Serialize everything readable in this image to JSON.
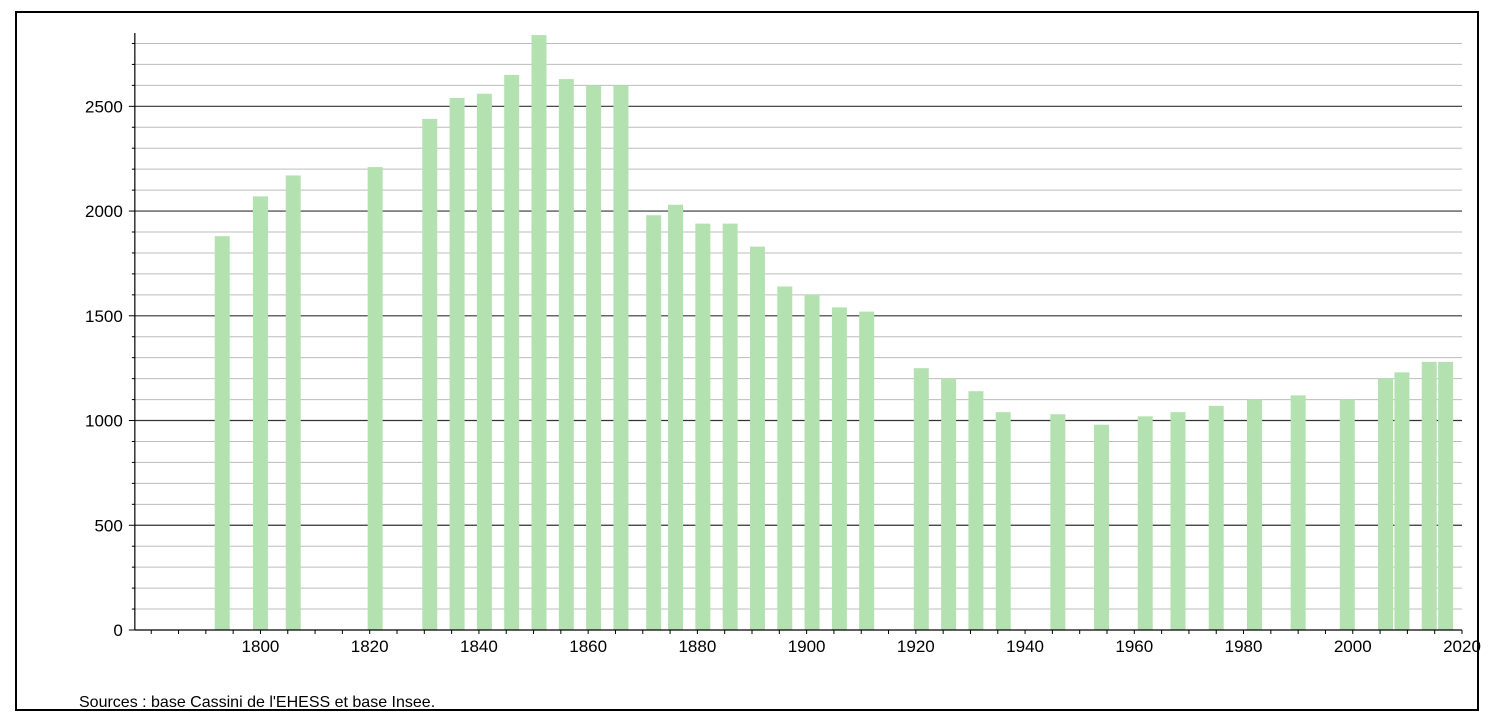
{
  "chart_data": {
    "type": "bar",
    "title": "",
    "xlabel": "",
    "ylabel": "",
    "xlim": [
      1773,
      2020
    ],
    "ylim": [
      0,
      2850
    ],
    "y_major_ticks": [
      0,
      500,
      1000,
      1500,
      2000,
      2500
    ],
    "y_minor_step": 100,
    "x_ticks": [
      1800,
      1820,
      1840,
      1860,
      1880,
      1900,
      1920,
      1940,
      1960,
      1980,
      2000,
      2020
    ],
    "grid": true,
    "bar_color": "#b3e2b0",
    "x": [
      1793,
      1800,
      1806,
      1821,
      1831,
      1836,
      1841,
      1846,
      1851,
      1856,
      1861,
      1866,
      1872,
      1876,
      1881,
      1886,
      1891,
      1896,
      1901,
      1906,
      1911,
      1921,
      1926,
      1931,
      1936,
      1946,
      1954,
      1962,
      1968,
      1975,
      1982,
      1990,
      1999,
      2006,
      2009,
      2014,
      2017
    ],
    "values": [
      1880,
      2070,
      2170,
      2210,
      2440,
      2540,
      2560,
      2650,
      2840,
      2630,
      2600,
      2600,
      1980,
      2030,
      1940,
      1940,
      1830,
      1640,
      1600,
      1540,
      1520,
      1250,
      1200,
      1140,
      1040,
      1030,
      980,
      1020,
      1040,
      1070,
      1100,
      1120,
      1100,
      1200,
      1230,
      1280,
      1280
    ]
  },
  "source_note": "Sources : base Cassini de l'EHESS et base Insee."
}
